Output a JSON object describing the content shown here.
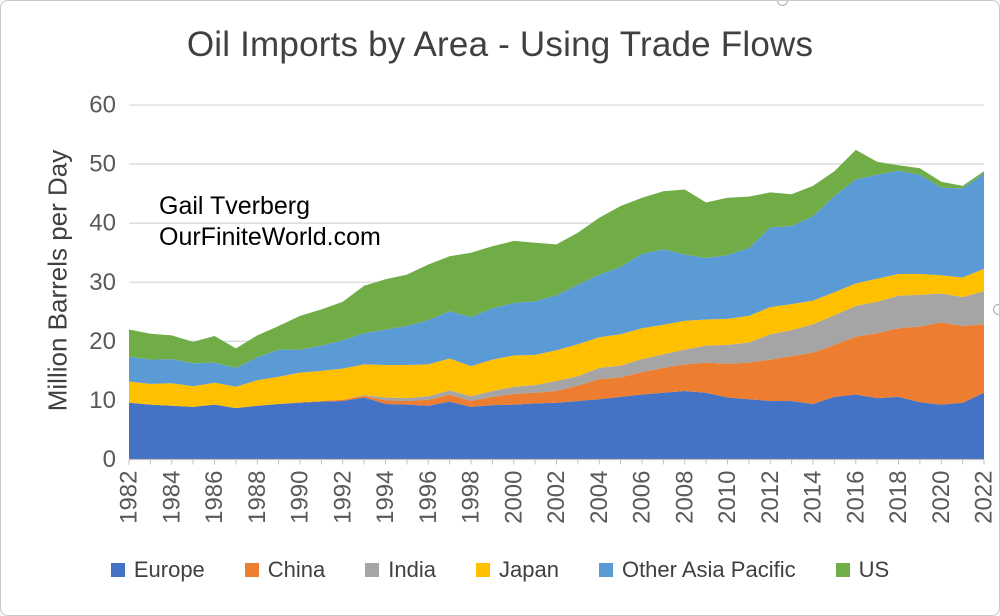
{
  "figure": {
    "title": "Oil Imports by Area - Using Trade Flows",
    "annotation_line1": "Gail Tverberg",
    "annotation_line2": "OurFiniteWorld.com",
    "y_axis_label": "Million Barrels per Day"
  },
  "legend": {
    "items": [
      {
        "label": "Europe",
        "color": "#4472C4"
      },
      {
        "label": "China",
        "color": "#ED7D31"
      },
      {
        "label": "India",
        "color": "#A5A5A5"
      },
      {
        "label": "Japan",
        "color": "#FFC000"
      },
      {
        "label": "Other Asia Pacific",
        "color": "#5B9BD5"
      },
      {
        "label": "US",
        "color": "#70AD47"
      }
    ]
  },
  "colors": {
    "gridline": "#D9D9D9",
    "axis_line": "#BFBFBF",
    "tick_text": "#595959",
    "title_text": "#404040",
    "annotation_text": "#000000"
  },
  "chart_data": {
    "type": "area",
    "stacked": true,
    "title": "Oil Imports by Area - Using Trade Flows",
    "xlabel": "",
    "ylabel": "Million Barrels per Day",
    "ylim": [
      0,
      60
    ],
    "y_ticks": [
      0,
      10,
      20,
      30,
      40,
      50,
      60
    ],
    "grid": true,
    "legend_position": "bottom",
    "x": [
      1982,
      1983,
      1984,
      1985,
      1986,
      1987,
      1988,
      1989,
      1990,
      1991,
      1992,
      1993,
      1994,
      1995,
      1996,
      1997,
      1998,
      1999,
      2000,
      2001,
      2002,
      2003,
      2004,
      2005,
      2006,
      2007,
      2008,
      2009,
      2010,
      2011,
      2012,
      2013,
      2014,
      2015,
      2016,
      2017,
      2018,
      2019,
      2020,
      2021,
      2022
    ],
    "x_tick_labels": [
      1982,
      1984,
      1986,
      1988,
      1990,
      1992,
      1994,
      1996,
      1998,
      2000,
      2002,
      2004,
      2006,
      2008,
      2010,
      2012,
      2014,
      2016,
      2018,
      2020,
      2022
    ],
    "units": "million barrels per day",
    "series": [
      {
        "name": "Europe",
        "color": "#4472C4",
        "values": [
          9.6,
          9.3,
          9.1,
          8.9,
          9.3,
          8.7,
          9.1,
          9.4,
          9.6,
          9.8,
          9.9,
          10.5,
          9.4,
          9.3,
          9.1,
          9.8,
          8.9,
          9.2,
          9.3,
          9.5,
          9.6,
          9.9,
          10.2,
          10.6,
          11.0,
          11.3,
          11.6,
          11.3,
          10.5,
          10.2,
          9.9,
          9.9,
          9.4,
          10.6,
          11.0,
          10.4,
          10.6,
          9.7,
          9.3,
          9.6,
          11.3
        ]
      },
      {
        "name": "China",
        "color": "#ED7D31",
        "values": [
          0,
          0,
          0,
          0,
          0,
          0,
          0,
          0,
          0.1,
          0.1,
          0.2,
          0.3,
          0.6,
          0.6,
          1.0,
          1.2,
          1.0,
          1.4,
          1.8,
          1.8,
          2.0,
          2.6,
          3.4,
          3.3,
          3.8,
          4.2,
          4.5,
          5.1,
          5.7,
          6.2,
          7.0,
          7.6,
          8.7,
          8.8,
          9.8,
          11.0,
          11.6,
          12.8,
          13.9,
          13.0,
          11.6
        ]
      },
      {
        "name": "India",
        "color": "#A5A5A5",
        "values": [
          0,
          0,
          0,
          0,
          0,
          0,
          0,
          0,
          0,
          0,
          0,
          0.1,
          0.5,
          0.5,
          0.6,
          0.7,
          0.8,
          1.0,
          1.2,
          1.3,
          1.7,
          1.6,
          1.9,
          2.0,
          2.2,
          2.3,
          2.5,
          2.9,
          3.2,
          3.4,
          4.3,
          4.4,
          4.8,
          5.0,
          5.2,
          5.3,
          5.5,
          5.4,
          4.9,
          4.9,
          5.6
        ]
      },
      {
        "name": "Japan",
        "color": "#FFC000",
        "values": [
          3.6,
          3.5,
          3.8,
          3.5,
          3.7,
          3.6,
          4.3,
          4.6,
          5.0,
          5.1,
          5.3,
          5.2,
          5.5,
          5.6,
          5.4,
          5.4,
          5.1,
          5.3,
          5.3,
          5.1,
          5.2,
          5.4,
          5.2,
          5.3,
          5.2,
          5.0,
          4.9,
          4.4,
          4.4,
          4.5,
          4.6,
          4.4,
          4.0,
          3.9,
          3.8,
          3.9,
          3.7,
          3.5,
          3.1,
          3.3,
          3.8
        ]
      },
      {
        "name": "Other Asia Pacific",
        "color": "#5B9BD5",
        "values": [
          4.2,
          4.1,
          4.1,
          3.9,
          3.4,
          3.2,
          3.9,
          4.6,
          3.9,
          4.3,
          4.8,
          5.3,
          6.0,
          6.6,
          7.5,
          8.0,
          8.3,
          8.7,
          8.9,
          9.1,
          9.3,
          10.1,
          10.6,
          11.4,
          12.6,
          12.8,
          11.2,
          10.4,
          10.8,
          11.5,
          13.5,
          13.2,
          14.3,
          16.3,
          17.6,
          17.6,
          17.5,
          16.8,
          14.8,
          15.1,
          16.1
        ]
      },
      {
        "name": "US",
        "color": "#70AD47",
        "values": [
          4.6,
          4.4,
          4.0,
          3.6,
          4.5,
          3.3,
          3.7,
          4.0,
          5.7,
          6.1,
          6.5,
          8.0,
          8.5,
          8.7,
          9.4,
          9.3,
          10.9,
          10.5,
          10.5,
          9.9,
          8.6,
          8.8,
          9.6,
          10.3,
          9.5,
          9.8,
          11.0,
          9.4,
          9.7,
          8.7,
          5.9,
          5.4,
          5.1,
          4.2,
          5.0,
          2.2,
          0.9,
          1.1,
          1.0,
          0.4,
          0.4
        ]
      }
    ]
  }
}
